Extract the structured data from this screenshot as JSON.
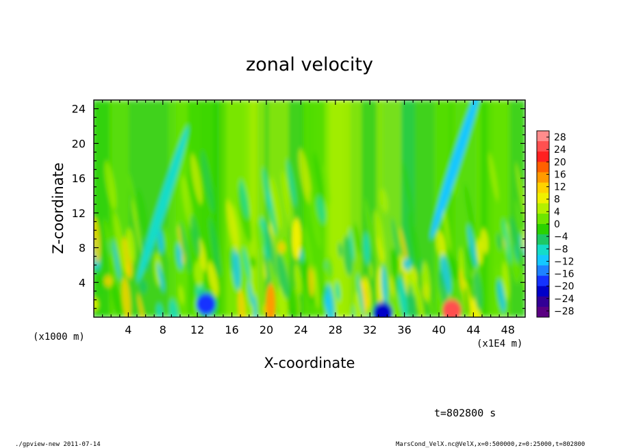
{
  "chart_data": {
    "type": "heatmap",
    "title": "zonal velocity",
    "xlabel": "X-coordinate",
    "ylabel": "Z-coordinate",
    "x_unit_label": "(x1E4 m)",
    "y_unit_label": "(x1000 m)",
    "xlim": [
      0,
      50
    ],
    "ylim": [
      0,
      25
    ],
    "x_ticks": [
      4,
      8,
      12,
      16,
      20,
      24,
      28,
      32,
      36,
      40,
      44,
      48
    ],
    "y_ticks": [
      4,
      8,
      12,
      16,
      20,
      24
    ],
    "colorbar": {
      "levels": [
        28,
        24,
        20,
        16,
        12,
        8,
        4,
        0,
        -4,
        -8,
        -12,
        -16,
        -20,
        -24,
        -28
      ],
      "colors": [
        "#ff8c8c",
        "#ff5050",
        "#ff2020",
        "#ff6000",
        "#ff9a00",
        "#ffd200",
        "#f0f000",
        "#b4f000",
        "#6ee600",
        "#2ad200",
        "#1ec864",
        "#14dcc8",
        "#14c8ff",
        "#1e82ff",
        "#1432ff",
        "#0000c8",
        "#320096",
        "#5a0082"
      ],
      "min": -30,
      "max": 30
    },
    "features": [
      {
        "x": 41.5,
        "z": 0.8,
        "value": 24
      },
      {
        "x": 42.0,
        "z": 18.0,
        "value": -12
      },
      {
        "x": 33.5,
        "z": 0.5,
        "value": -22
      },
      {
        "x": 23.5,
        "z": 9.0,
        "value": 10
      },
      {
        "x": 8.0,
        "z": 13.0,
        "value": -9
      },
      {
        "x": 13.0,
        "z": 1.5,
        "value": -18
      },
      {
        "x": 20.5,
        "z": 1.5,
        "value": 14
      }
    ],
    "time_label": "t=802800 s"
  },
  "footer": {
    "left": "./gpview-new  2011-07-14",
    "right": "MarsCond_VelX.nc@VelX,x=0:500000,z=0:25000,t=802800"
  }
}
